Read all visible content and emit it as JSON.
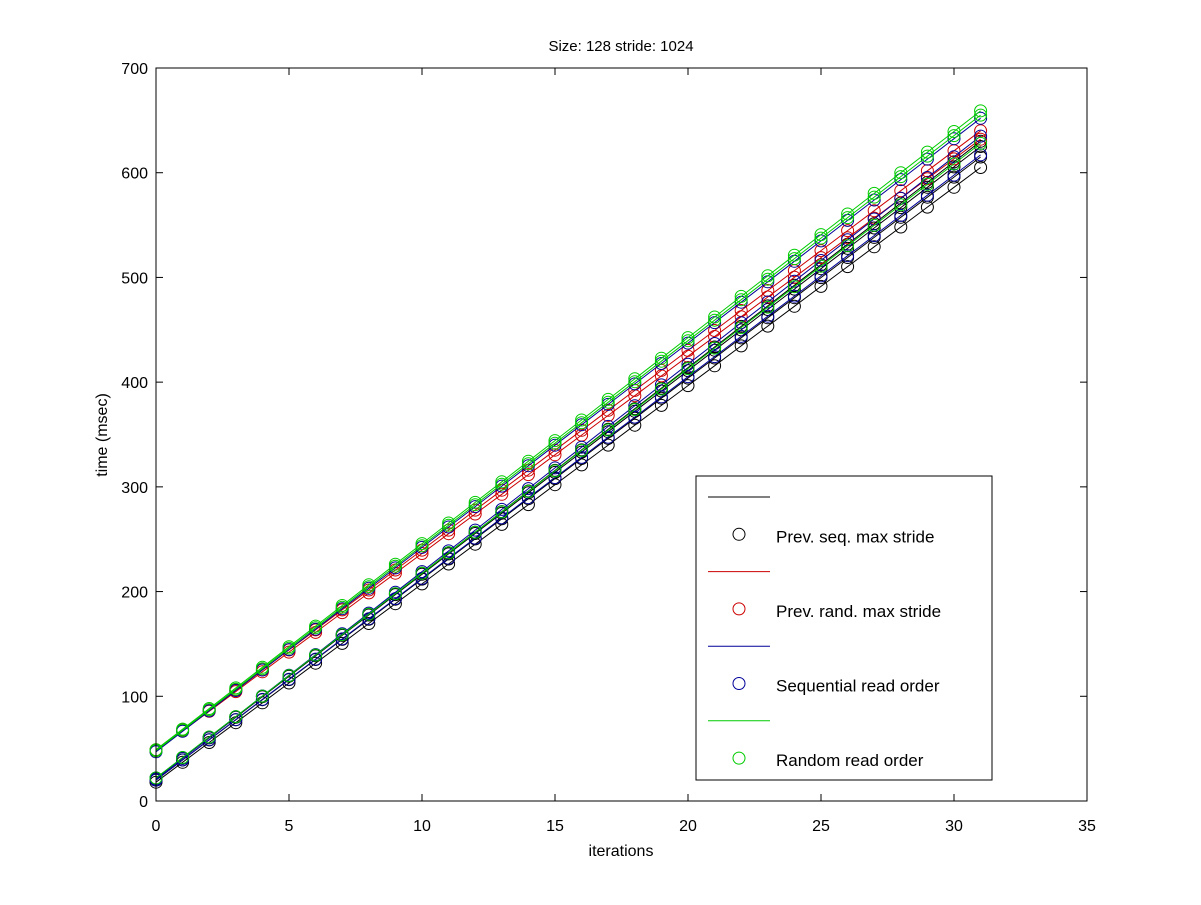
{
  "chart_data": {
    "type": "line",
    "title": "Size: 128 stride: 1024",
    "xlabel": "iterations",
    "ylabel": "time (msec)",
    "xlim": [
      0,
      35
    ],
    "ylim": [
      0,
      700
    ],
    "xticks": [
      0,
      5,
      10,
      15,
      20,
      25,
      30,
      35
    ],
    "yticks": [
      0,
      100,
      200,
      300,
      400,
      500,
      600,
      700
    ],
    "grid": false,
    "legend_position": "bottom-right",
    "marker": "circle",
    "x": [
      0,
      1,
      2,
      3,
      4,
      5,
      6,
      7,
      8,
      9,
      10,
      11,
      12,
      13,
      14,
      15,
      16,
      17,
      18,
      19,
      20,
      21,
      22,
      23,
      24,
      25,
      26,
      27,
      28,
      29,
      30,
      31
    ],
    "series": [
      {
        "name": "Prev. seq. max stride",
        "color": "#000000",
        "start": 18,
        "end": 605
      },
      {
        "name": "Prev. seq. max stride",
        "color": "#000000",
        "start": 20,
        "end": 615
      },
      {
        "name": "Prev. seq. max stride",
        "color": "#000000",
        "start": 22,
        "end": 625
      },
      {
        "name": "Prev. seq. max stride",
        "color": "#000000",
        "start": 21,
        "end": 630
      },
      {
        "name": "Prev. rand. max stride",
        "color": "#cc0000",
        "start": 48,
        "end": 632
      },
      {
        "name": "Prev. rand. max stride",
        "color": "#cc0000",
        "start": 49,
        "end": 640
      },
      {
        "name": "Sequential read order",
        "color": "#000099",
        "start": 20,
        "end": 617
      },
      {
        "name": "Sequential read order",
        "color": "#000099",
        "start": 21,
        "end": 635
      },
      {
        "name": "Sequential read order",
        "color": "#000099",
        "start": 47,
        "end": 652
      },
      {
        "name": "Random read order",
        "color": "#00cc00",
        "start": 48,
        "end": 655
      },
      {
        "name": "Random read order",
        "color": "#00cc00",
        "start": 49,
        "end": 659
      },
      {
        "name": "Random read order",
        "color": "#00cc00",
        "start": 22,
        "end": 628
      }
    ],
    "legend": [
      {
        "label": "",
        "color": "#000000",
        "kind": "line"
      },
      {
        "label": "Prev. seq. max stride",
        "color": "#000000",
        "kind": "marker"
      },
      {
        "label": "",
        "color": "#cc0000",
        "kind": "line"
      },
      {
        "label": "Prev. rand. max stride",
        "color": "#cc0000",
        "kind": "marker"
      },
      {
        "label": "",
        "color": "#000099",
        "kind": "line"
      },
      {
        "label": "Sequential read order",
        "color": "#000099",
        "kind": "marker"
      },
      {
        "label": "",
        "color": "#00cc00",
        "kind": "line"
      },
      {
        "label": "Random read order",
        "color": "#00cc00",
        "kind": "marker"
      }
    ]
  }
}
